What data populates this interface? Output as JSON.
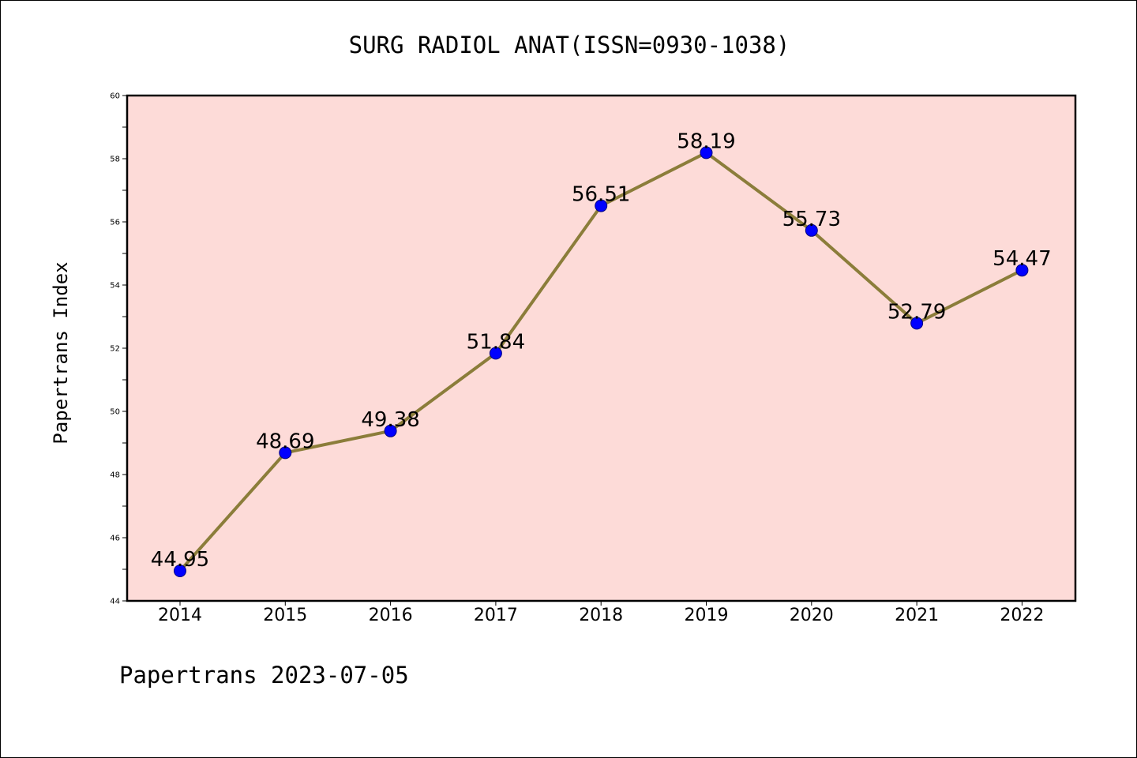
{
  "chart_data": {
    "type": "line",
    "title": "SURG RADIOL ANAT(ISSN=0930-1038)",
    "xlabel": "",
    "ylabel": "Papertrans Index",
    "categories": [
      "2014",
      "2015",
      "2016",
      "2017",
      "2018",
      "2019",
      "2020",
      "2021",
      "2022"
    ],
    "series": [
      {
        "values": [
          44.95,
          48.69,
          49.38,
          51.84,
          56.51,
          58.19,
          55.73,
          52.79,
          54.47
        ]
      }
    ],
    "data_labels": [
      "44.95",
      "48.69",
      "49.38",
      "51.84",
      "56.51",
      "58.19",
      "55.73",
      "52.79",
      "54.47"
    ],
    "ylim": [
      44,
      60
    ],
    "y_ticks": [
      44,
      46,
      48,
      50,
      52,
      54,
      56,
      58,
      60
    ],
    "grid": false,
    "legend": "none",
    "colors": {
      "plot_background": "#fddbd8",
      "line": "#8b7d3a",
      "marker": "#0000ff",
      "marker_edge": "#000080"
    }
  },
  "footer": "Papertrans 2023-07-05"
}
